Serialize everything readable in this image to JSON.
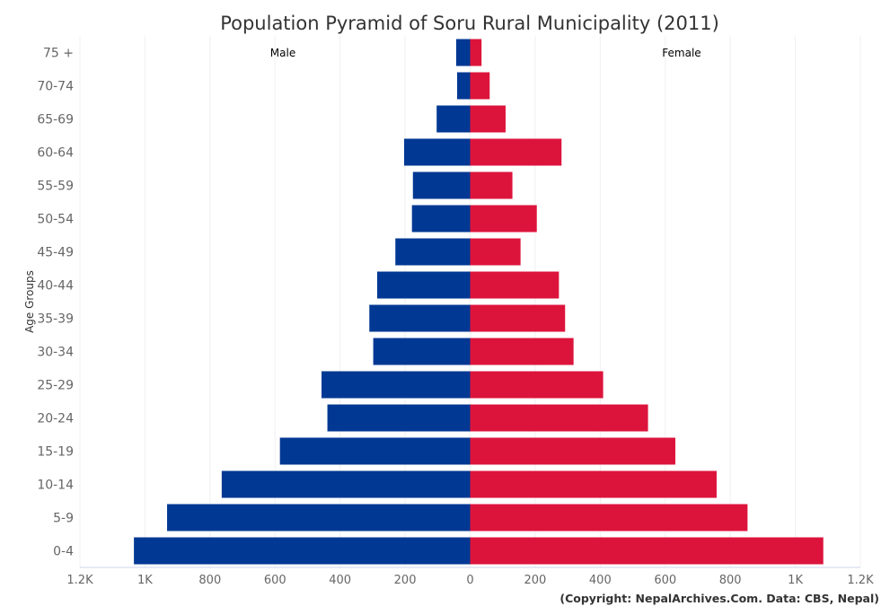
{
  "chart_data": {
    "type": "bar",
    "orientation": "horizontal",
    "title": "Population Pyramid of Soru Rural Municipality (2011)",
    "ylabel": "Age Groups",
    "credit": "(Copyright: NepalArchives.Com. Data: CBS, Nepal)",
    "categories": [
      "75 +",
      "70-74",
      "65-69",
      "60-64",
      "55-59",
      "50-54",
      "45-49",
      "40-44",
      "35-39",
      "30-34",
      "25-29",
      "20-24",
      "15-19",
      "10-14",
      "5-9",
      "0-4"
    ],
    "series": [
      {
        "name": "Male",
        "color": "#003893",
        "values": [
          43,
          40,
          103,
          203,
          176,
          179,
          230,
          286,
          310,
          298,
          457,
          439,
          585,
          764,
          932,
          1034
        ]
      },
      {
        "name": "Female",
        "color": "#DC143C",
        "values": [
          35,
          60,
          109,
          281,
          130,
          205,
          155,
          273,
          292,
          318,
          409,
          547,
          631,
          758,
          853,
          1086
        ]
      }
    ],
    "xlim": [
      -1200,
      1200
    ],
    "xticks": [
      -1200,
      -1000,
      -800,
      -600,
      -400,
      -200,
      0,
      200,
      400,
      600,
      800,
      1000,
      1200
    ],
    "xtick_labels": [
      "1.2K",
      "1K",
      "800",
      "600",
      "400",
      "200",
      "0",
      "200",
      "400",
      "600",
      "800",
      "1K",
      "1.2K"
    ],
    "grid": true
  }
}
